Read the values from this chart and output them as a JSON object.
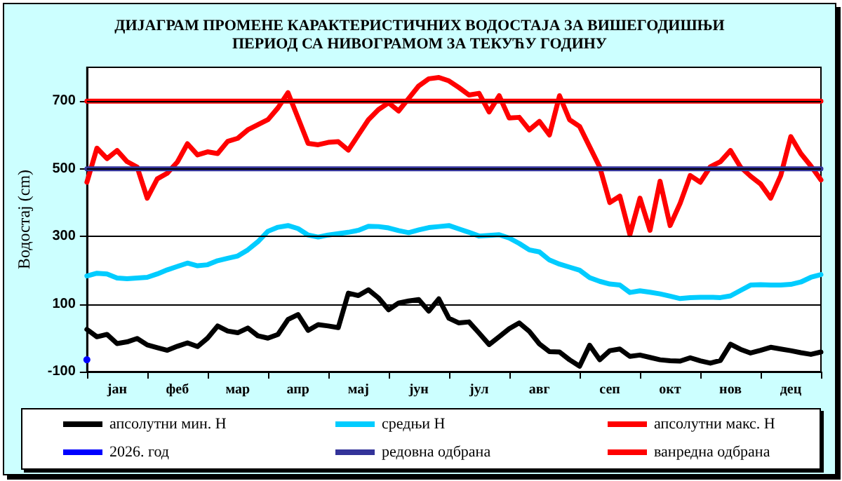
{
  "chart_data": {
    "type": "line",
    "title": "ДИЈАГРАМ ПРОМЕНЕ КАРАКТЕРИСТИЧНИХ ВОДОСТАЈА ЗА ВИШЕГОДИШЊИ\nПЕРИОД СА НИВОГРАМОМ ЗА ТЕКУЋУ ГОДИНУ",
    "ylabel": "Водостај (cm)",
    "categories": [
      null,
      null,
      null,
      "јан",
      null,
      null,
      null,
      null,
      null,
      "феб",
      null,
      null,
      null,
      null,
      null,
      "мар",
      null,
      null,
      null,
      null,
      null,
      "апр",
      null,
      null,
      null,
      null,
      null,
      "мај",
      null,
      null,
      null,
      null,
      null,
      "јун",
      null,
      null,
      null,
      null,
      null,
      "јул",
      null,
      null,
      null,
      null,
      null,
      "авг",
      null,
      null,
      null,
      null,
      null,
      null,
      "сеп",
      null,
      null,
      null,
      null,
      null,
      "окт",
      null,
      null,
      null,
      null,
      null,
      "нов",
      null,
      null,
      null,
      null,
      null,
      "дец",
      null,
      null,
      null
    ],
    "ylim": [
      -100,
      800
    ],
    "yticks": [
      -100,
      100,
      300,
      500,
      700
    ],
    "grid": "y",
    "legend": "bottom",
    "marker": "none",
    "line_style": "solid",
    "series": [
      {
        "name": "апсолутни мин. Н",
        "color": "#000000",
        "values": [
          25,
          3,
          10,
          -17,
          -12,
          -2,
          -21,
          -29,
          -37,
          -25,
          -15,
          -26,
          -1,
          35,
          20,
          15,
          29,
          6,
          -1,
          10,
          54,
          69,
          22,
          39,
          35,
          30,
          132,
          125,
          142,
          118,
          83,
          103,
          109,
          113,
          79,
          115,
          58,
          44,
          47,
          14,
          -20,
          3,
          27,
          44,
          19,
          -18,
          -41,
          -42,
          -65,
          -84,
          -22,
          -65,
          -38,
          -33,
          -55,
          -51,
          -58,
          -65,
          -68,
          -69,
          -59,
          -68,
          -75,
          -67,
          -19,
          -34,
          -45,
          -37,
          -28,
          -33,
          -38,
          -44,
          -49,
          -42
        ]
      },
      {
        "name": "средњи Н",
        "color": "#00ccff",
        "values": [
          183,
          191,
          189,
          177,
          175,
          177,
          179,
          189,
          201,
          211,
          221,
          213,
          216,
          228,
          235,
          242,
          260,
          284,
          315,
          327,
          332,
          323,
          304,
          298,
          304,
          308,
          312,
          318,
          330,
          329,
          325,
          317,
          311,
          319,
          326,
          329,
          332,
          322,
          312,
          301,
          303,
          305,
          295,
          279,
          260,
          254,
          230,
          218,
          209,
          200,
          178,
          167,
          159,
          156,
          134,
          139,
          135,
          130,
          123,
          116,
          119,
          120,
          120,
          119,
          124,
          140,
          156,
          157,
          156,
          156,
          158,
          165,
          179,
          187
        ]
      },
      {
        "name": "апсолутни макс. Н",
        "color": "#ff0000",
        "values": [
          460,
          561,
          530,
          554,
          521,
          505,
          413,
          470,
          487,
          520,
          574,
          541,
          550,
          545,
          581,
          590,
          615,
          630,
          645,
          680,
          725,
          650,
          575,
          571,
          578,
          580,
          555,
          600,
          645,
          675,
          695,
          671,
          708,
          745,
          766,
          770,
          760,
          740,
          718,
          723,
          668,
          716,
          650,
          652,
          615,
          640,
          600,
          716,
          645,
          625,
          565,
          505,
          400,
          419,
          305,
          413,
          318,
          463,
          332,
          398,
          480,
          460,
          506,
          521,
          554,
          505,
          478,
          455,
          413,
          480,
          595,
          545,
          508,
          467
        ]
      },
      {
        "name": "2026. год",
        "color": "#0000ff",
        "marker": "circle",
        "values": [
          -65,
          null,
          null,
          null,
          null,
          null,
          null,
          null,
          null,
          null,
          null,
          null,
          null,
          null,
          null,
          null,
          null,
          null,
          null,
          null,
          null,
          null,
          null,
          null,
          null,
          null,
          null,
          null,
          null,
          null,
          null,
          null,
          null,
          null,
          null,
          null,
          null,
          null,
          null,
          null,
          null,
          null,
          null,
          null,
          null,
          null,
          null,
          null,
          null,
          null,
          null,
          null,
          null,
          null,
          null,
          null,
          null,
          null,
          null,
          null,
          null,
          null,
          null,
          null,
          null,
          null,
          null,
          null,
          null,
          null,
          null,
          null,
          null,
          null
        ]
      },
      {
        "name": "редовна одбрана",
        "color": "#333399",
        "values": [
          500,
          500,
          500,
          500,
          500,
          500,
          500,
          500,
          500,
          500,
          500,
          500,
          500,
          500,
          500,
          500,
          500,
          500,
          500,
          500,
          500,
          500,
          500,
          500,
          500,
          500,
          500,
          500,
          500,
          500,
          500,
          500,
          500,
          500,
          500,
          500,
          500,
          500,
          500,
          500,
          500,
          500,
          500,
          500,
          500,
          500,
          500,
          500,
          500,
          500,
          500,
          500,
          500,
          500,
          500,
          500,
          500,
          500,
          500,
          500,
          500,
          500,
          500,
          500,
          500,
          500,
          500,
          500,
          500,
          500,
          500,
          500,
          500,
          500
        ]
      },
      {
        "name": "ванредна одбрана",
        "color": "#ff0000",
        "values": [
          700,
          700,
          700,
          700,
          700,
          700,
          700,
          700,
          700,
          700,
          700,
          700,
          700,
          700,
          700,
          700,
          700,
          700,
          700,
          700,
          700,
          700,
          700,
          700,
          700,
          700,
          700,
          700,
          700,
          700,
          700,
          700,
          700,
          700,
          700,
          700,
          700,
          700,
          700,
          700,
          700,
          700,
          700,
          700,
          700,
          700,
          700,
          700,
          700,
          700,
          700,
          700,
          700,
          700,
          700,
          700,
          700,
          700,
          700,
          700,
          700,
          700,
          700,
          700,
          700,
          700,
          700,
          700,
          700,
          700,
          700,
          700,
          700,
          700
        ]
      }
    ]
  }
}
